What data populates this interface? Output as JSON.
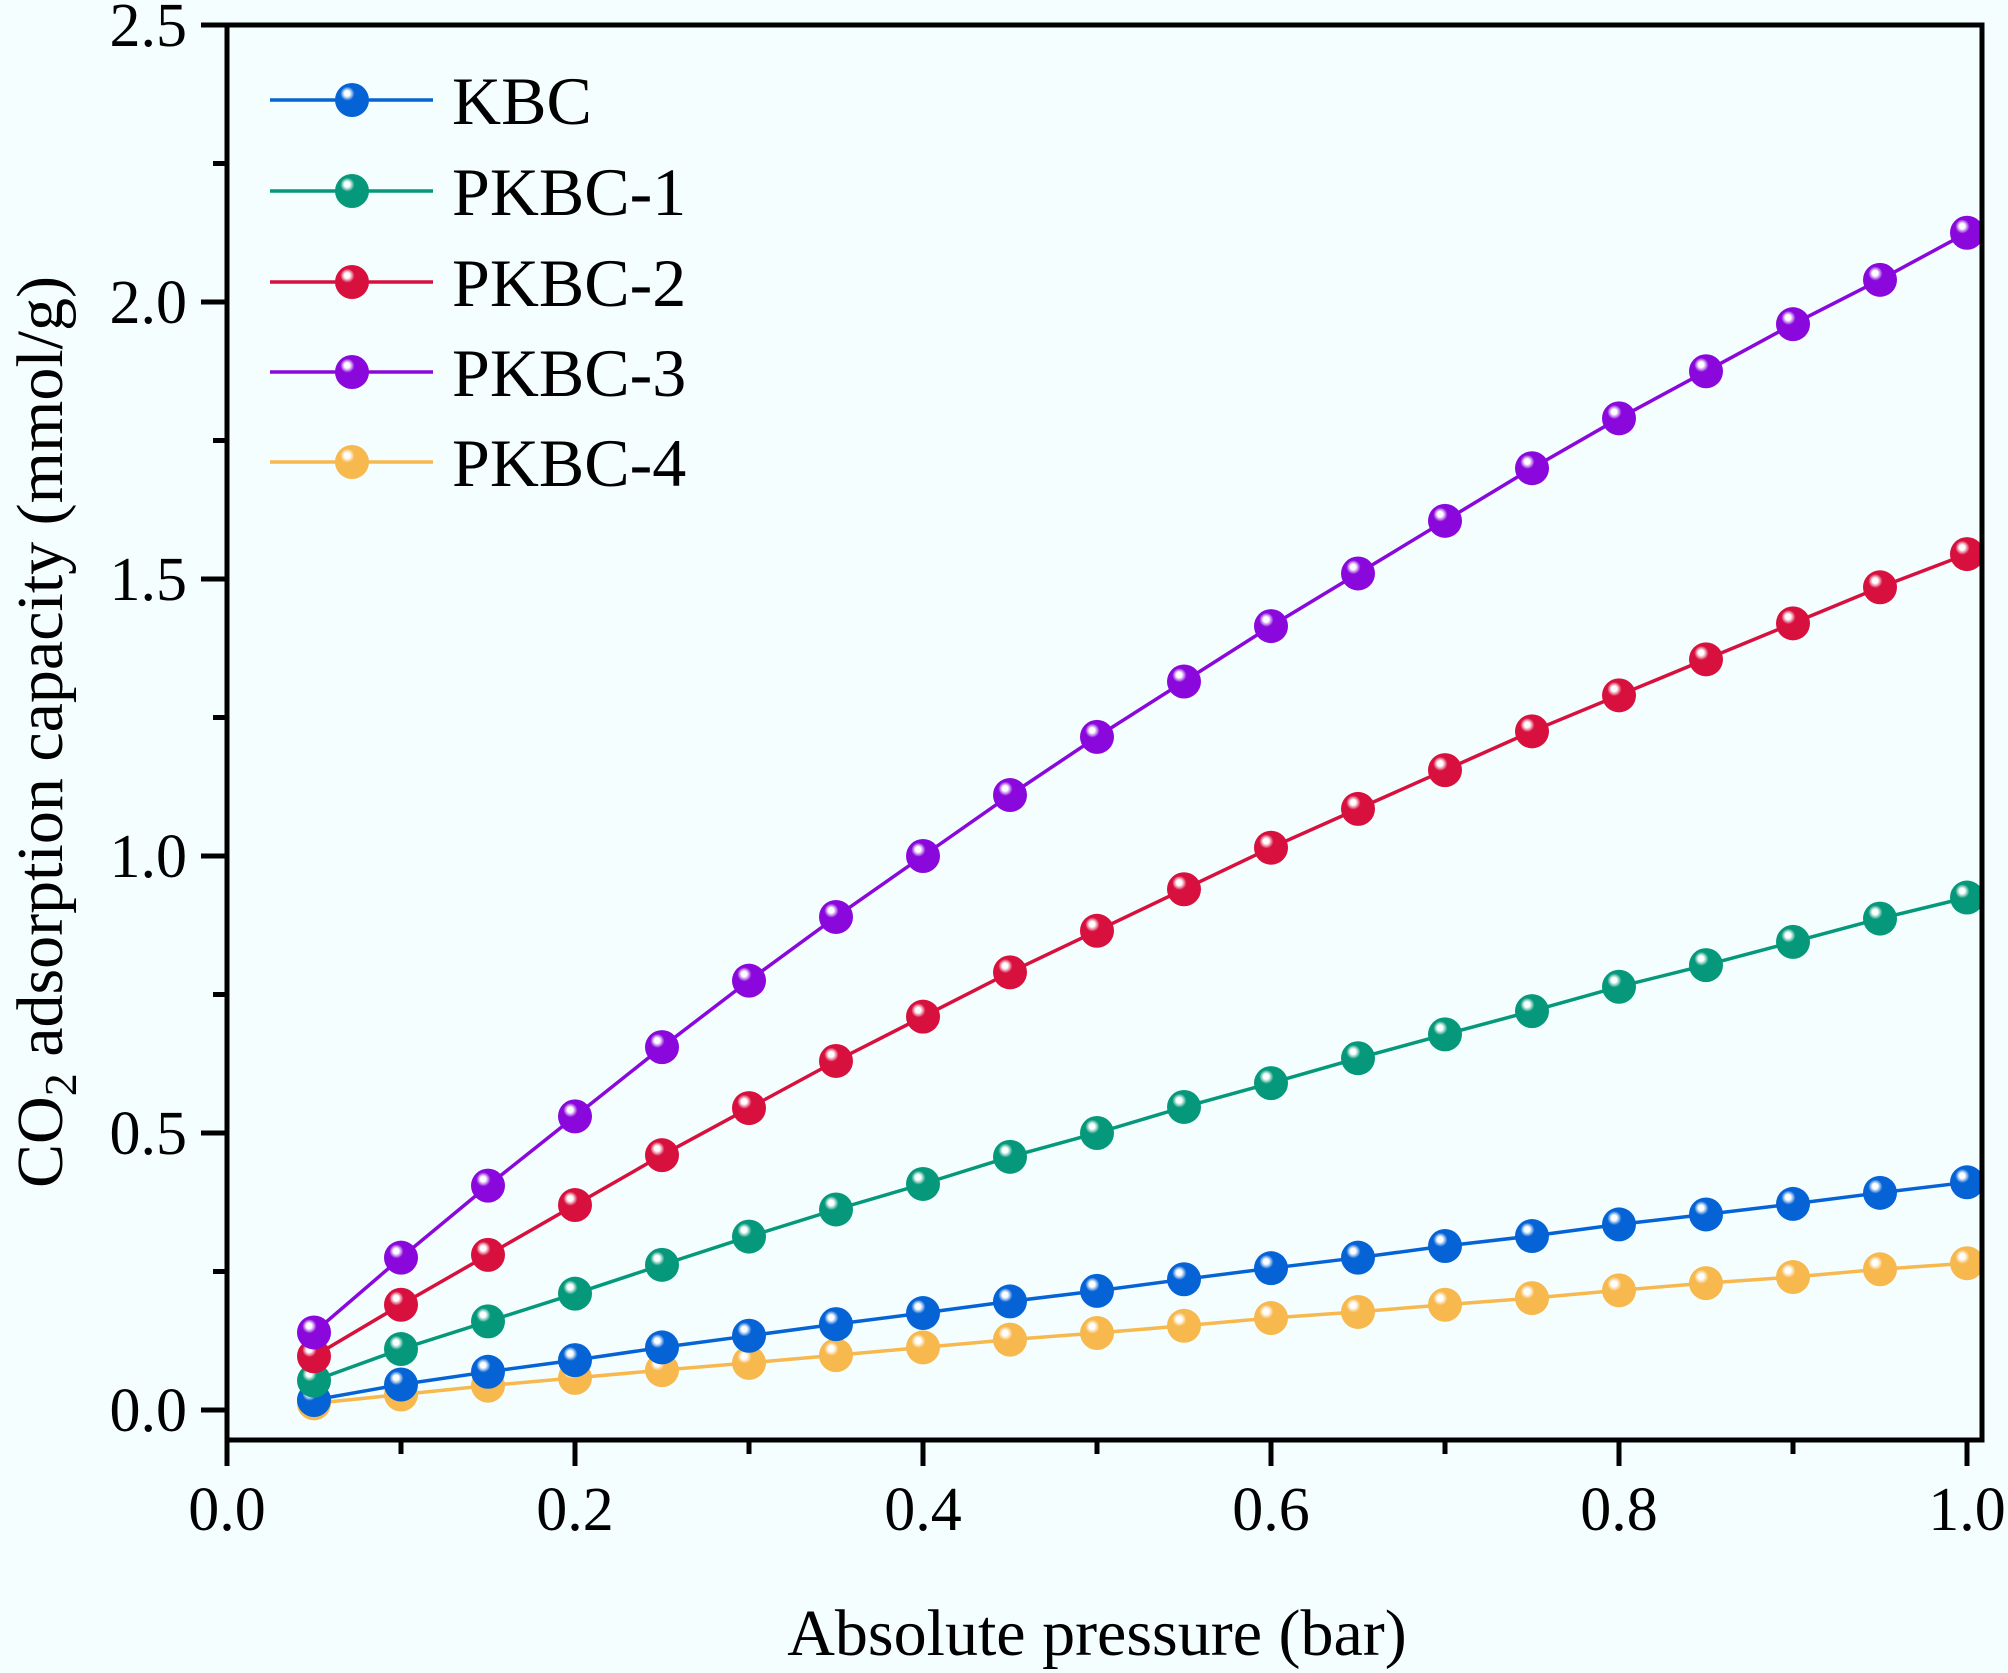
{
  "chart_data": {
    "type": "line",
    "title": "",
    "xlabel": "Absolute pressure (bar)",
    "ylabel_main": "CO",
    "ylabel_sub": "2",
    "ylabel_rest": " adsorption capacity (mmol/g)",
    "ylabel": "CO2 adsorption capacity (mmol/g)",
    "xlim": [
      0.0,
      1.0
    ],
    "ylim": [
      0.0,
      2.5
    ],
    "xticks": [
      "0.0",
      "0.2",
      "0.4",
      "0.6",
      "0.8",
      "1.0"
    ],
    "yticks": [
      "0.0",
      "0.5",
      "1.0",
      "1.5",
      "2.0",
      "2.5"
    ],
    "grid": false,
    "legend_position": "top-left",
    "x": [
      0.05,
      0.1,
      0.15,
      0.2,
      0.25,
      0.3,
      0.35,
      0.4,
      0.45,
      0.5,
      0.55,
      0.6,
      0.65,
      0.7,
      0.75,
      0.8,
      0.85,
      0.9,
      0.95,
      1.0
    ],
    "series": [
      {
        "name": "KBC",
        "color": "#0563D6",
        "values": [
          0.018,
          0.046,
          0.069,
          0.09,
          0.113,
          0.134,
          0.155,
          0.175,
          0.196,
          0.215,
          0.236,
          0.256,
          0.275,
          0.296,
          0.314,
          0.335,
          0.353,
          0.372,
          0.392,
          0.411
        ]
      },
      {
        "name": "PKBC-1",
        "color": "#05987A",
        "values": [
          0.053,
          0.11,
          0.16,
          0.21,
          0.262,
          0.313,
          0.362,
          0.408,
          0.457,
          0.5,
          0.547,
          0.59,
          0.635,
          0.678,
          0.72,
          0.764,
          0.803,
          0.845,
          0.887,
          0.925
        ]
      },
      {
        "name": "PKBC-2",
        "color": "#D8103E",
        "values": [
          0.097,
          0.19,
          0.28,
          0.37,
          0.46,
          0.545,
          0.63,
          0.71,
          0.79,
          0.865,
          0.94,
          1.015,
          1.085,
          1.155,
          1.225,
          1.29,
          1.355,
          1.42,
          1.485,
          1.545
        ]
      },
      {
        "name": "PKBC-3",
        "color": "#8A08DC",
        "values": [
          0.14,
          0.275,
          0.405,
          0.53,
          0.655,
          0.775,
          0.89,
          1.0,
          1.11,
          1.215,
          1.315,
          1.415,
          1.51,
          1.605,
          1.7,
          1.79,
          1.875,
          1.96,
          2.04,
          2.125
        ]
      },
      {
        "name": "PKBC-4",
        "color": "#F7B84E",
        "values": [
          0.012,
          0.028,
          0.044,
          0.058,
          0.072,
          0.085,
          0.099,
          0.113,
          0.127,
          0.139,
          0.152,
          0.166,
          0.177,
          0.19,
          0.202,
          0.216,
          0.229,
          0.24,
          0.254,
          0.265
        ]
      }
    ]
  }
}
